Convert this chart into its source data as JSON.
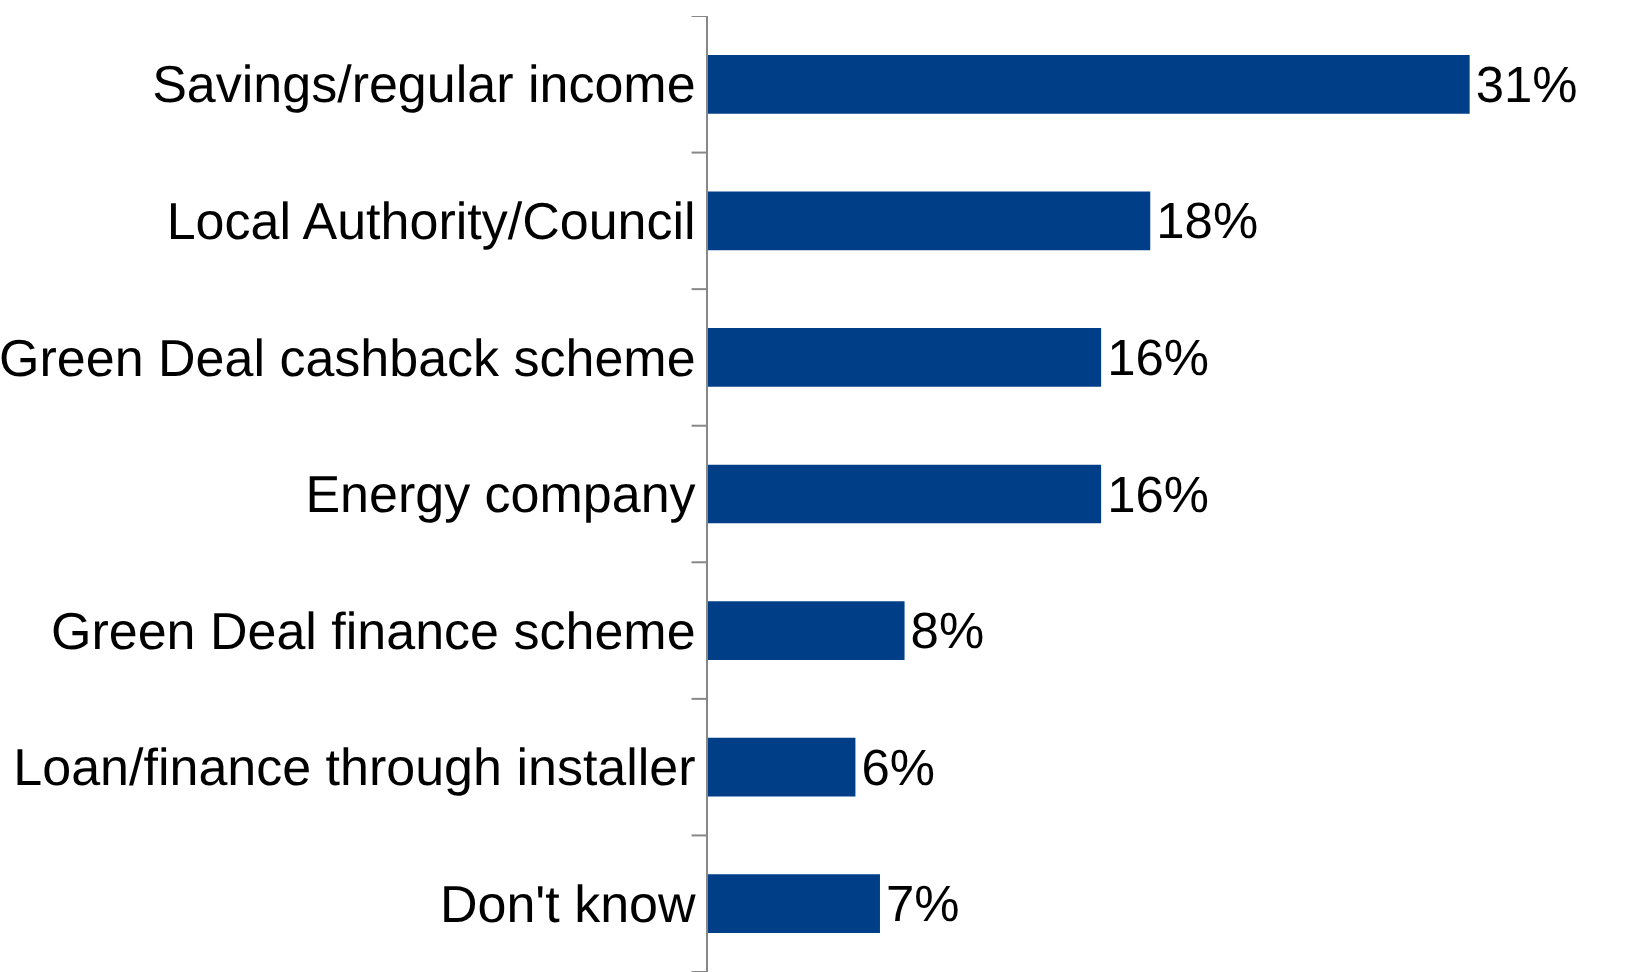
{
  "chart_data": {
    "type": "bar",
    "orientation": "horizontal",
    "categories": [
      "Savings/regular income",
      "Local Authority/Council",
      "Green Deal cashback scheme",
      "Energy company",
      "Green Deal finance scheme",
      "Loan/finance through installer",
      "Don't know"
    ],
    "values": [
      31,
      18,
      16,
      16,
      8,
      6,
      7
    ],
    "value_labels": [
      "31%",
      "18%",
      "16%",
      "16%",
      "8%",
      "6%",
      "7%"
    ],
    "color": "#003f87"
  }
}
